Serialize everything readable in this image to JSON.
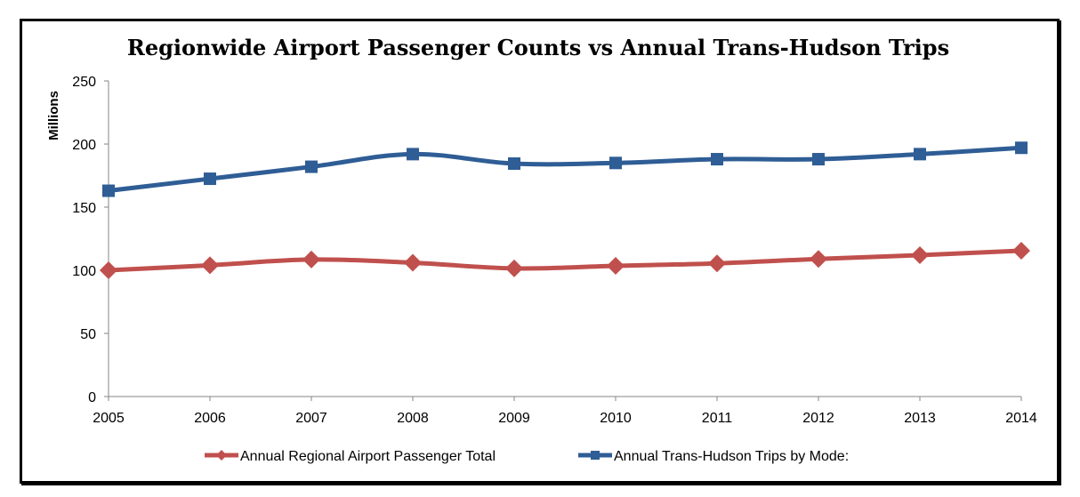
{
  "chart_data": {
    "type": "line",
    "title": "Regionwide Airport Passenger Counts vs Annual Trans-Hudson Trips",
    "xlabel": "",
    "ylabel": "Millions",
    "ylim": [
      0,
      250
    ],
    "yticks": [
      0,
      50,
      100,
      150,
      200,
      250
    ],
    "x": [
      "2005",
      "2006",
      "2007",
      "2008",
      "2009",
      "2010",
      "2011",
      "2012",
      "2013",
      "2014"
    ],
    "grid": false,
    "legend_position": "bottom",
    "series": [
      {
        "name": "Annual Regional Airport Passenger Total",
        "color": "#C0504D",
        "marker": "diamond",
        "values": [
          100,
          104,
          108.5,
          106,
          101.5,
          103.5,
          105.5,
          109,
          112,
          115.5
        ]
      },
      {
        "name": "Annual Trans-Hudson Trips by Mode:",
        "color": "#2F5D95",
        "marker": "square",
        "values": [
          163,
          172.5,
          182,
          192,
          184.5,
          185,
          188,
          188,
          192,
          197
        ]
      }
    ]
  }
}
